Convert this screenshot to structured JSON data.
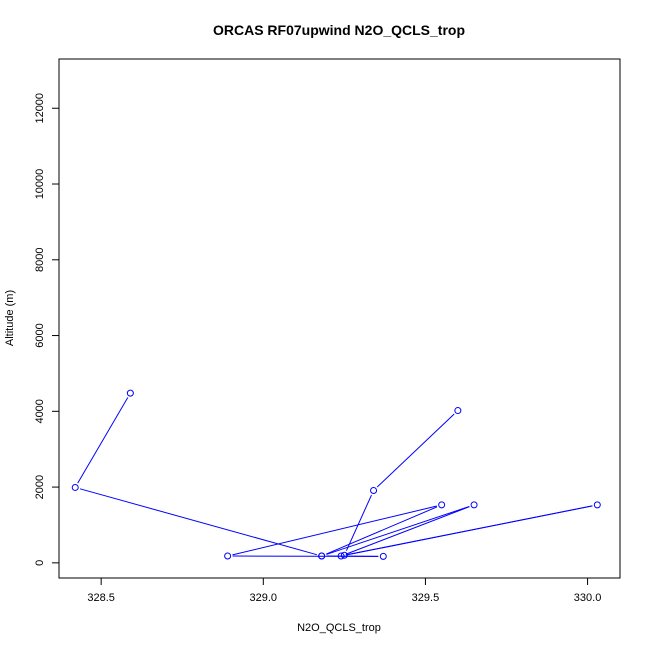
{
  "chart_data": {
    "type": "line",
    "title": "ORCAS RF07upwind N2O_QCLS_trop",
    "xlabel": "N2O_QCLS_trop",
    "ylabel": "Altitude (m)",
    "xlim": [
      328.37,
      330.1
    ],
    "ylim": [
      -400,
      13300
    ],
    "xticks": [
      328.5,
      329.0,
      329.5,
      330.0
    ],
    "xtick_labels": [
      "328.5",
      "329.0",
      "329.5",
      "330.0"
    ],
    "yticks": [
      0,
      2000,
      4000,
      6000,
      8000,
      10000,
      12000
    ],
    "ytick_labels": [
      "0",
      "2000",
      "4000",
      "6000",
      "8000",
      "10000",
      "12000"
    ],
    "grid": false,
    "color": "#0000ff",
    "series": [
      {
        "points": [
          {
            "x": 328.59,
            "y": 4480
          },
          {
            "x": 328.42,
            "y": 1990
          },
          {
            "x": 329.18,
            "y": 180
          },
          {
            "x": 329.37,
            "y": 170
          },
          {
            "x": 328.89,
            "y": 180
          },
          {
            "x": 329.55,
            "y": 1530
          },
          {
            "x": 329.18,
            "y": 180
          },
          {
            "x": 329.65,
            "y": 1530
          },
          {
            "x": 329.24,
            "y": 180
          },
          {
            "x": 330.03,
            "y": 1530
          },
          {
            "x": 329.25,
            "y": 200
          },
          {
            "x": 329.34,
            "y": 1910
          },
          {
            "x": 329.6,
            "y": 4020
          }
        ]
      }
    ]
  }
}
